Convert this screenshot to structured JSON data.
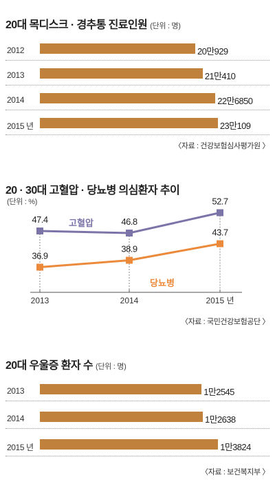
{
  "colors": {
    "bar": "#c0813d",
    "hypertension": "#7b74a8",
    "diabetes": "#ec8a3c"
  },
  "panel1": {
    "title": "20대 목디스크 · 경추통 진료인원",
    "unit": "(단위 : 명)",
    "source": "〈자료 : 건강보험심사평가원 〉"
  },
  "panel2": {
    "title": "20 · 30대 고혈압 · 당뇨병 의심환자 추이",
    "unit": "(단위 : %)",
    "source": "〈자료 : 국민건강보험공단 〉"
  },
  "panel3": {
    "title": "20대 우울증 환자 수",
    "unit": "(단위 : 명)",
    "source": "〈자료 : 보건복지부 〉"
  },
  "chart_data": [
    {
      "type": "bar",
      "orientation": "horizontal",
      "categories": [
        "2012",
        "2013",
        "2014",
        "2015 년"
      ],
      "values": [
        200929,
        210410,
        226850,
        230109
      ],
      "value_labels": [
        "20만929",
        "21만410",
        "22만6850",
        "23만109"
      ],
      "xlim": [
        0,
        240000
      ]
    },
    {
      "type": "line",
      "x": [
        "2013",
        "2014",
        "2015 년"
      ],
      "ylim": [
        30,
        56
      ],
      "series": [
        {
          "name": "고혈압",
          "values": [
            47.4,
            46.8,
            52.7
          ],
          "labels": [
            "47.4",
            "46.8",
            "52.7"
          ]
        },
        {
          "name": "당뇨병",
          "values": [
            36.9,
            38.9,
            43.7
          ],
          "labels": [
            "36.9",
            "38.9",
            "43.7"
          ]
        }
      ]
    },
    {
      "type": "bar",
      "orientation": "horizontal",
      "categories": [
        "2013",
        "2014",
        "2015 년"
      ],
      "values": [
        12545,
        12638,
        13824
      ],
      "value_labels": [
        "1만2545",
        "1만2638",
        "1만3824"
      ],
      "xlim": [
        0,
        14400
      ]
    }
  ]
}
